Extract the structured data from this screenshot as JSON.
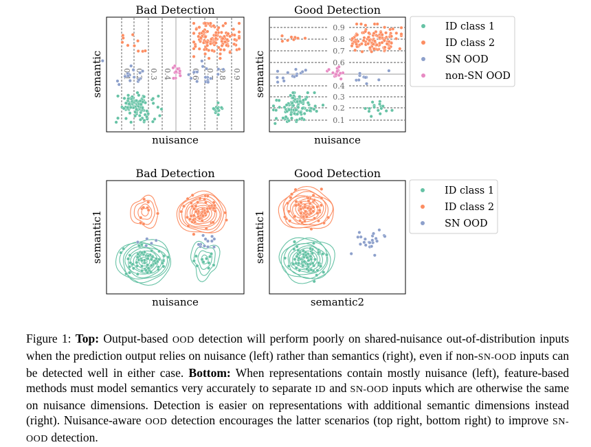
{
  "colors": {
    "id1": "#66c2a5",
    "id2": "#fc8d62",
    "sn_ood": "#8da0cb",
    "non_sn_ood": "#e78ac3"
  },
  "top_left": {
    "title": "Bad Detection",
    "xlabel": "nuisance",
    "ylabel": "semantic",
    "contour_labels": [
      "0.1",
      "0.2",
      "0.3",
      "0.4",
      "0.6",
      "0.7",
      "0.8",
      "0.9"
    ]
  },
  "top_right": {
    "title": "Good Detection",
    "xlabel": "nuisance",
    "ylabel": "semantic",
    "contour_labels": [
      "0.9",
      "0.8",
      "0.7",
      "0.6",
      "0.4",
      "0.3",
      "0.2",
      "0.1"
    ]
  },
  "bottom_left": {
    "title": "Bad Detection",
    "xlabel": "nuisance",
    "ylabel": "semantic1"
  },
  "bottom_right": {
    "title": "Good Detection",
    "xlabel": "semantic2",
    "ylabel": "semantic1"
  },
  "legend_top": [
    "ID class 1",
    "ID class 2",
    "SN OOD",
    "non-SN OOD"
  ],
  "legend_bottom": [
    "ID class 1",
    "ID class 2",
    "SN OOD"
  ],
  "caption": {
    "prefix": "Figure 1:",
    "top_label": "Top:",
    "part1": "Output-based",
    "ood1": "OOD",
    "part2": "detection will perform poorly on shared-nuisance out-of-distribution inputs when the prediction output relies on nuisance (left) rather than semantics (right), even if non-",
    "snood1": "SN-OOD",
    "part3": "inputs can be detected well in either case.",
    "bottom_label": "Bottom:",
    "part4": "When representations contain mostly nuisance (left), feature-based methods must model semantics very accurately to separate",
    "id1": "ID",
    "part5": "and",
    "snood2": "SN-OOD",
    "part6": "inputs which are otherwise the same on nuisance dimensions. Detection is easier on representations with additional semantic dimensions instead (right). Nuisance-aware",
    "ood2": "OOD",
    "part7": "detection encourages the latter scenarios (top right, bottom right) to improve",
    "snood3": "SN-OOD",
    "part8": "detection."
  }
}
